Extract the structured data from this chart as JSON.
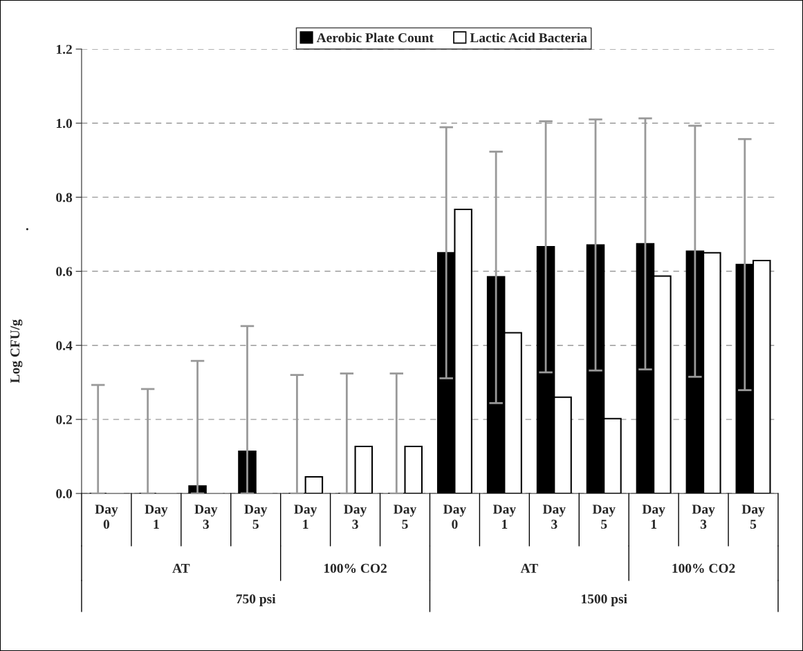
{
  "chart_data": {
    "type": "bar",
    "ylabel": "Log CFU/g",
    "categories": [
      "Day 0",
      "Day 1",
      "Day 3",
      "Day 5",
      "Day 1",
      "Day 3",
      "Day 5",
      "Day 0",
      "Day 1",
      "Day 3",
      "Day 5",
      "Day 1",
      "Day 3",
      "Day 5"
    ],
    "series": [
      {
        "name": "Aerobic Plate Count",
        "color": "#000000",
        "values": [
          0,
          0,
          0.02,
          0.114,
          0,
          0,
          0,
          0.65,
          0.585,
          0.666,
          0.671,
          0.674,
          0.654,
          0.618
        ],
        "errors": [
          [
            0,
            0.293
          ],
          [
            0,
            0.282
          ],
          [
            0,
            0.358
          ],
          [
            0,
            0.452
          ],
          [
            0,
            0.32
          ],
          [
            0,
            0.324
          ],
          [
            0,
            0.324
          ],
          [
            0.311,
            0.989
          ],
          [
            0.244,
            0.923
          ],
          [
            0.327,
            1.005
          ],
          [
            0.332,
            1.01
          ],
          [
            0.335,
            1.013
          ],
          [
            0.315,
            0.993
          ],
          [
            0.279,
            0.957
          ]
        ]
      },
      {
        "name": "Lactic Acid Bacteria",
        "color": "#ffffff",
        "values": [
          0,
          0,
          0,
          0,
          0.045,
          0.127,
          0.127,
          0.767,
          0.434,
          0.26,
          0.202,
          0.587,
          0.65,
          0.629
        ]
      }
    ],
    "ylim": [
      0,
      1.2
    ],
    "yticks": [
      {
        "value": 0,
        "label": "0.0"
      },
      0.2,
      0.4,
      0.6,
      0.8,
      {
        "value": 1,
        "label": "1.0"
      },
      1.2
    ],
    "grid": "y",
    "legend": "top",
    "annotations": [
      ".",
      "AT",
      "100% CO2",
      "AT",
      "100% CO2",
      "750 psi",
      "1500 psi"
    ]
  }
}
